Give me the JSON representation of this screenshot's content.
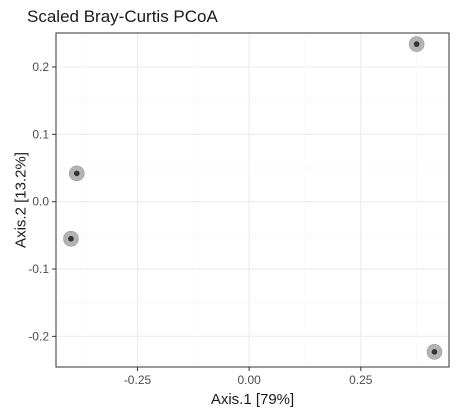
{
  "chart_data": {
    "type": "scatter",
    "title": "Scaled Bray-Curtis PCoA",
    "xlabel": "Axis.1   [79%]",
    "ylabel": "Axis.2   [13.2%]",
    "xlim": [
      -0.4325,
      0.4475
    ],
    "ylim": [
      -0.2455,
      0.2505
    ],
    "x_ticks": [
      -0.25,
      0.0,
      0.25
    ],
    "x_tick_labels": [
      "-0.25",
      "0.00",
      "0.25"
    ],
    "y_ticks": [
      0.2,
      0.1,
      0.0,
      -0.1,
      -0.2
    ],
    "y_tick_labels": [
      "0.2",
      "0.1",
      "0.0",
      "-0.1",
      "-0.2"
    ],
    "grid": true,
    "legend": "none",
    "points": [
      {
        "x": 0.375,
        "y": 0.234
      },
      {
        "x": -0.386,
        "y": 0.042
      },
      {
        "x": -0.399,
        "y": -0.055
      },
      {
        "x": 0.415,
        "y": -0.223
      }
    ],
    "colors": {
      "panel_border": "#333333",
      "grid_major": "#ebebeb",
      "grid_minor": "#f5f5f5",
      "point_halo": "#b3b3b3",
      "point_core": "#333333",
      "text": "#1a1a1a",
      "tick_text": "#4d4d4d"
    }
  }
}
